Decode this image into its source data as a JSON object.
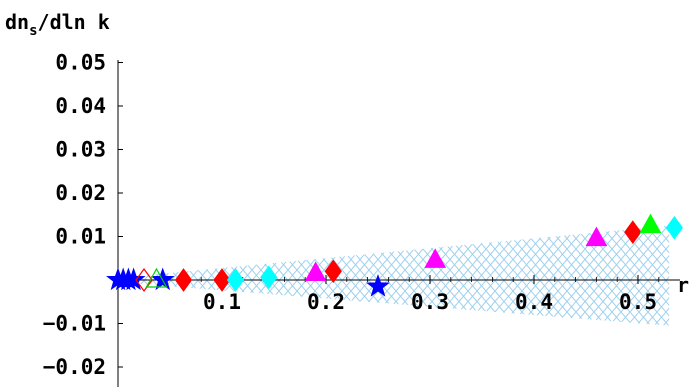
{
  "chart_data": {
    "type": "scatter",
    "title": "",
    "ylabel": "dn_s/dln k",
    "ylabel_main": "dn",
    "ylabel_sub": "s",
    "ylabel_rest": "/dln k",
    "xlabel": "r",
    "xlim": [
      0,
      0.53
    ],
    "ylim": [
      -0.025,
      0.05
    ],
    "x_ticks": [
      0.1,
      0.2,
      0.3,
      0.4,
      0.5
    ],
    "x_tick_labels": [
      "0.1",
      "0.2",
      "0.3",
      "0.4",
      "0.5"
    ],
    "y_ticks": [
      0.05,
      0.04,
      0.03,
      0.02,
      0.01,
      -0.01,
      -0.02
    ],
    "y_tick_labels": [
      "0.05",
      "0.04",
      "0.03",
      "0.02",
      "0.01",
      "−0.01",
      "−0.02"
    ],
    "grid": false,
    "band": {
      "upper": [
        [
          0.0,
          0.0005
        ],
        [
          0.53,
          0.0125
        ]
      ],
      "lower": [
        [
          0.0,
          -0.0005
        ],
        [
          0.53,
          -0.0105
        ]
      ],
      "color": "#9fd0ee"
    },
    "series": [
      {
        "marker": "star",
        "color": "#0000ff",
        "filled": true,
        "points": [
          [
            0.0,
            0.0
          ],
          [
            0.005,
            0.0
          ],
          [
            0.01,
            0.0
          ],
          [
            0.015,
            0.0
          ],
          [
            0.043,
            0.0
          ],
          [
            0.25,
            -0.0015
          ]
        ]
      },
      {
        "marker": "diamond",
        "color": "#ff0000",
        "filled": true,
        "points": [
          [
            0.063,
            0.0
          ],
          [
            0.1,
            0.0
          ],
          [
            0.207,
            0.002
          ],
          [
            0.495,
            0.011
          ]
        ]
      },
      {
        "marker": "diamond",
        "color": "#ff0000",
        "filled": false,
        "points": [
          [
            0.025,
            0.0
          ]
        ]
      },
      {
        "marker": "diamond",
        "color": "#00ffff",
        "filled": true,
        "points": [
          [
            0.113,
            0.0
          ],
          [
            0.145,
            0.0006
          ],
          [
            0.535,
            0.012
          ]
        ]
      },
      {
        "marker": "triangle",
        "color": "#ff00ff",
        "filled": true,
        "points": [
          [
            0.19,
            0.0015
          ],
          [
            0.305,
            0.0045
          ],
          [
            0.46,
            0.0095
          ]
        ]
      },
      {
        "marker": "triangle",
        "color": "#00ff00",
        "filled": true,
        "points": [
          [
            0.512,
            0.0125
          ]
        ]
      },
      {
        "marker": "triangle",
        "color": "#00cc00",
        "filled": false,
        "points": [
          [
            0.037,
            0.0
          ]
        ]
      }
    ]
  }
}
